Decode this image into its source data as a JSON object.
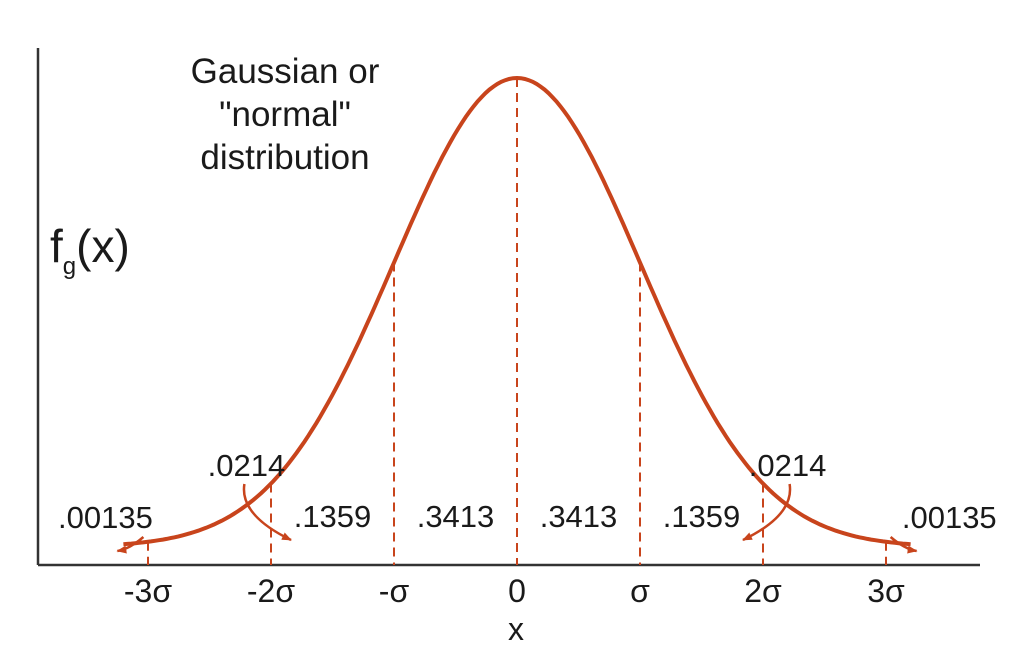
{
  "chart_data": {
    "type": "line",
    "title_lines": [
      "Gaussian or",
      "\"normal\"",
      "distribution"
    ],
    "ylabel": {
      "main": "f",
      "sub": "g",
      "arg": "(x)"
    },
    "xlabel": "x",
    "xlim": [
      -4,
      4
    ],
    "x_ticks": [
      {
        "x": -3,
        "label": "-3σ"
      },
      {
        "x": -2,
        "label": "-2σ"
      },
      {
        "x": -1,
        "label": "-σ"
      },
      {
        "x": 0,
        "label": "0"
      },
      {
        "x": 1,
        "label": "σ"
      },
      {
        "x": 2,
        "label": "2σ"
      },
      {
        "x": 3,
        "label": "3σ"
      }
    ],
    "divider_lines_at": [
      -3,
      -2,
      -1,
      0,
      1,
      2,
      3
    ],
    "regions": [
      {
        "from": -2,
        "to": -1,
        "probability": ".1359"
      },
      {
        "from": -1,
        "to": 0,
        "probability": ".3413"
      },
      {
        "from": 0,
        "to": 1,
        "probability": ".3413"
      },
      {
        "from": 1,
        "to": 2,
        "probability": ".1359"
      }
    ],
    "tail_annotations": [
      {
        "label": ".0214",
        "points_to": -2.2
      },
      {
        "label": ".00135",
        "points_to": -3.2
      },
      {
        "label": ".0214",
        "points_to": 2.2
      },
      {
        "label": ".00135",
        "points_to": 3.2
      }
    ],
    "curve": {
      "distribution": "normal",
      "mean": 0,
      "sd": 1,
      "x_range": [
        -3.2,
        3.2
      ]
    },
    "curve_color": "#c8441c"
  }
}
